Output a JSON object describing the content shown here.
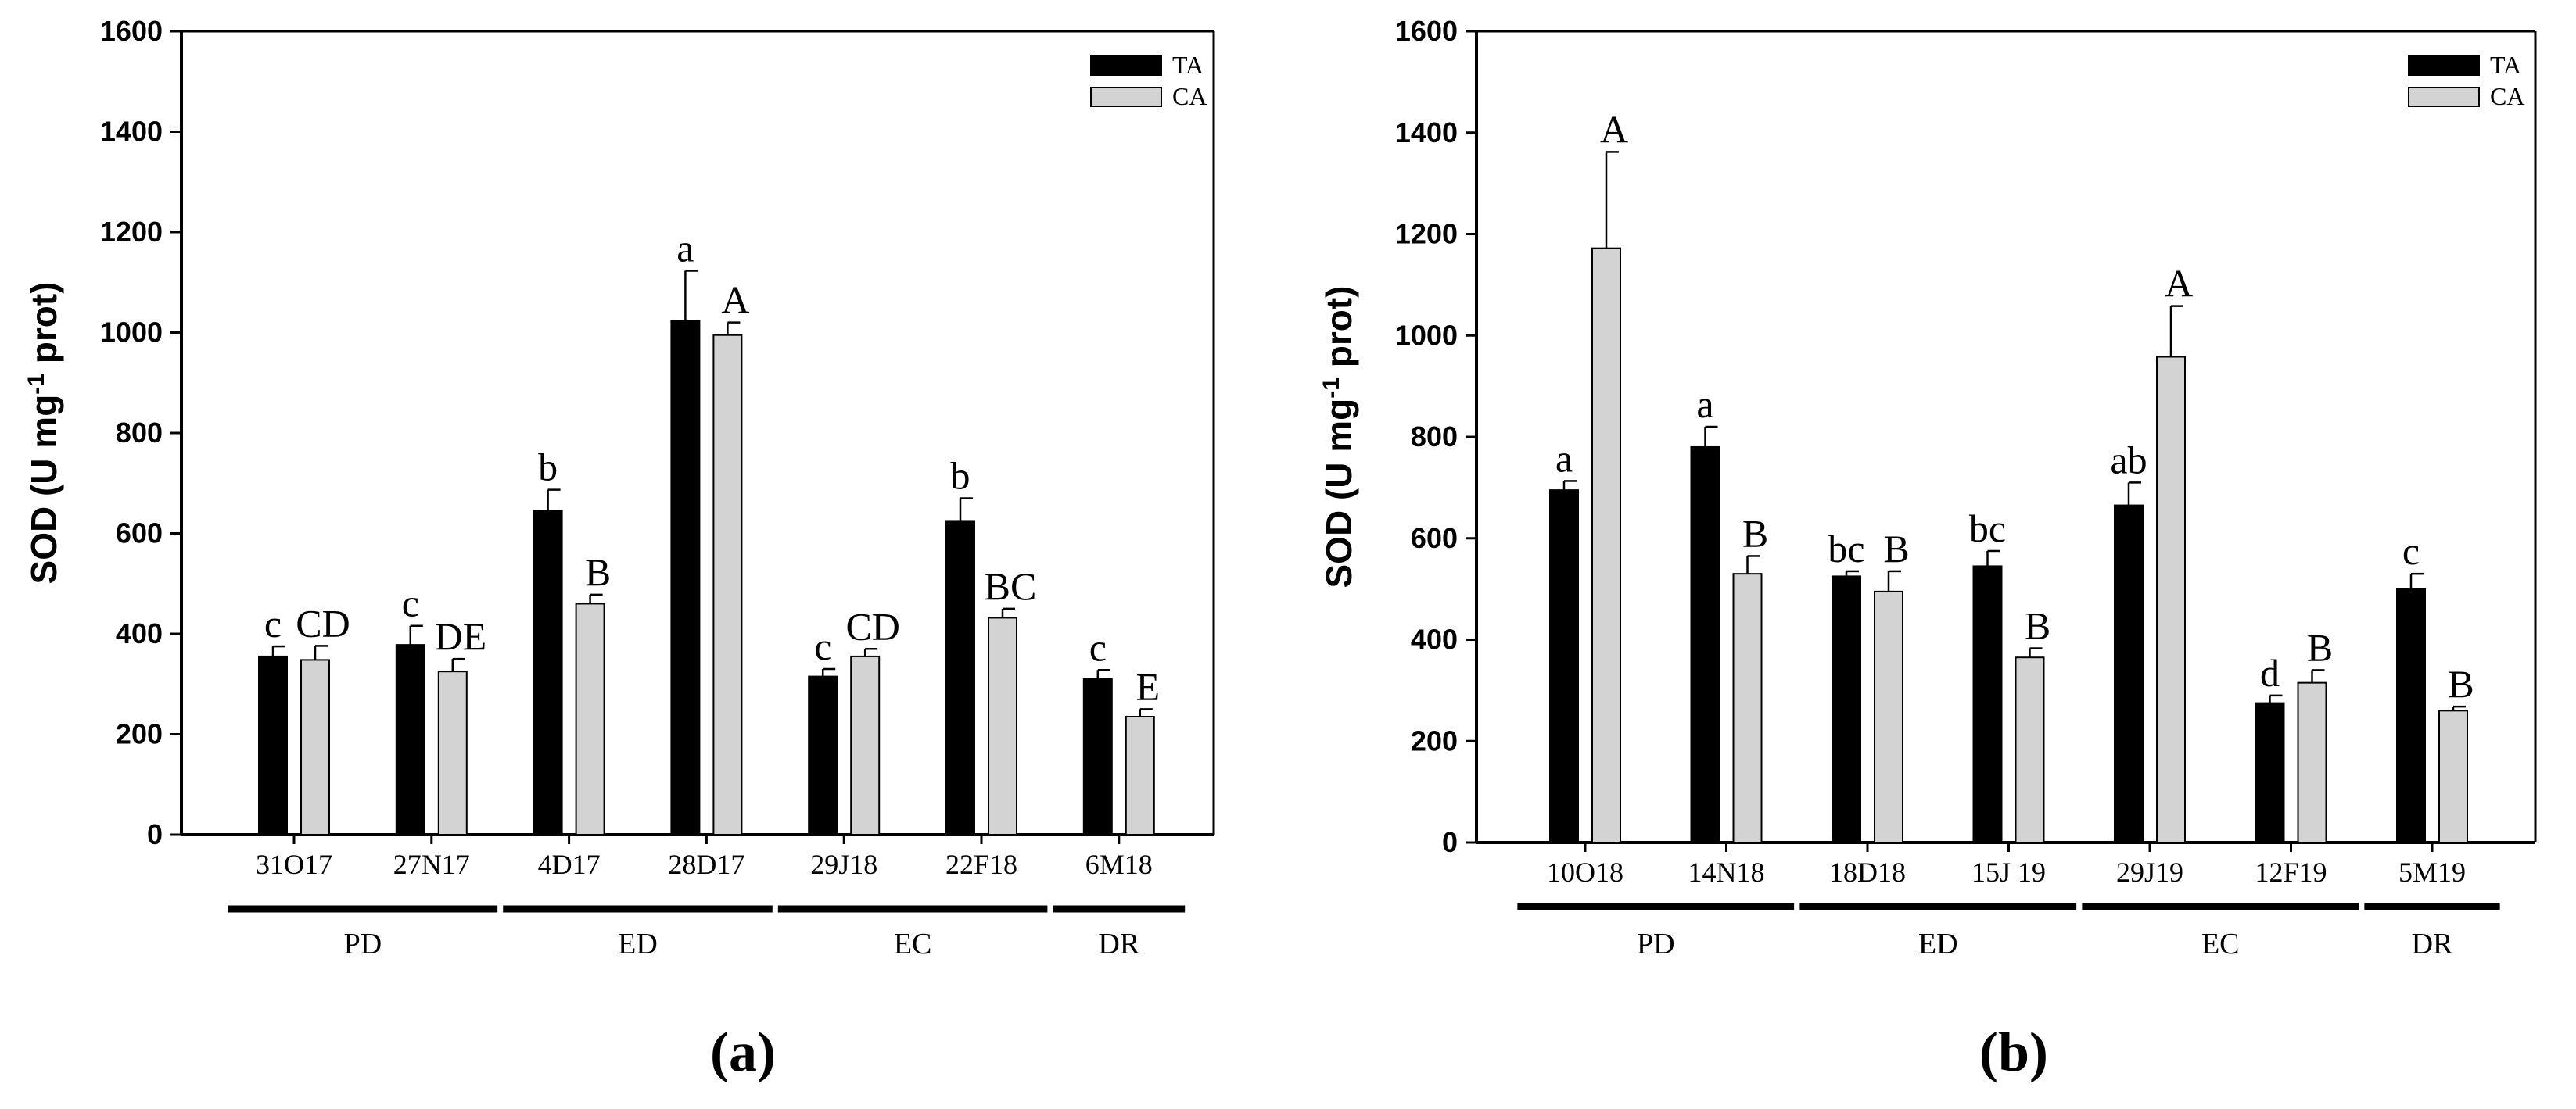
{
  "colors": {
    "TA": "#000000",
    "CA": "#d3d3d3",
    "axis": "#000000"
  },
  "chart_data": [
    {
      "type": "bar",
      "panel_label": "(a)",
      "ylabel_main": "SOD (U mg",
      "ylabel_sup": "-1",
      "ylabel_end": " prot)",
      "ylim": [
        0,
        1600
      ],
      "yticks": [
        0,
        200,
        400,
        600,
        800,
        1000,
        1200,
        1400,
        1600
      ],
      "legend": [
        "TA",
        "CA"
      ],
      "legend_position": "top-right",
      "categories": [
        "31O17",
        "27N17",
        "4D17",
        "28D17",
        "29J18",
        "22F18",
        "6M18"
      ],
      "series": [
        {
          "name": "TA",
          "values": [
            355,
            378,
            645,
            1023,
            315,
            625,
            310
          ],
          "errors": [
            20,
            38,
            42,
            100,
            15,
            45,
            18
          ],
          "letters": [
            "c",
            "c",
            "b",
            "a",
            "c",
            "b",
            "c"
          ]
        },
        {
          "name": "CA",
          "values": [
            348,
            325,
            460,
            995,
            355,
            432,
            235
          ],
          "errors": [
            28,
            25,
            18,
            25,
            15,
            18,
            15
          ],
          "letters": [
            "CD",
            "DE",
            "B",
            "A",
            "CD",
            "BC",
            "E"
          ]
        }
      ],
      "groups": [
        {
          "label": "PD",
          "from": 0,
          "to": 1
        },
        {
          "label": "ED",
          "from": 2,
          "to": 3
        },
        {
          "label": "EC",
          "from": 4,
          "to": 5
        },
        {
          "label": "DR",
          "from": 6,
          "to": 6
        }
      ]
    },
    {
      "type": "bar",
      "panel_label": "(b)",
      "ylabel_main": "SOD (U mg",
      "ylabel_sup": "-1",
      "ylabel_end": " prot)",
      "ylim": [
        0,
        1600
      ],
      "yticks": [
        0,
        200,
        400,
        600,
        800,
        1000,
        1200,
        1400,
        1600
      ],
      "legend": [
        "TA",
        "CA"
      ],
      "legend_position": "top-right",
      "categories": [
        "10O18",
        "14N18",
        "18D18",
        "15J 19",
        "29J19",
        "12F19",
        "5M19"
      ],
      "series": [
        {
          "name": "TA",
          "values": [
            695,
            780,
            525,
            545,
            665,
            275,
            500
          ],
          "errors": [
            18,
            40,
            10,
            30,
            45,
            15,
            30
          ],
          "letters": [
            "a",
            "a",
            "bc",
            "bc",
            "ab",
            "d",
            "c"
          ]
        },
        {
          "name": "CA",
          "values": [
            1172,
            530,
            495,
            365,
            958,
            315,
            260
          ],
          "errors": [
            190,
            35,
            40,
            18,
            100,
            25,
            8
          ],
          "letters": [
            "A",
            "B",
            "B",
            "B",
            "A",
            "B",
            "B"
          ]
        }
      ],
      "groups": [
        {
          "label": "PD",
          "from": 0,
          "to": 1
        },
        {
          "label": "ED",
          "from": 2,
          "to": 3
        },
        {
          "label": "EC",
          "from": 4,
          "to": 5
        },
        {
          "label": "DR",
          "from": 6,
          "to": 6
        }
      ]
    }
  ]
}
